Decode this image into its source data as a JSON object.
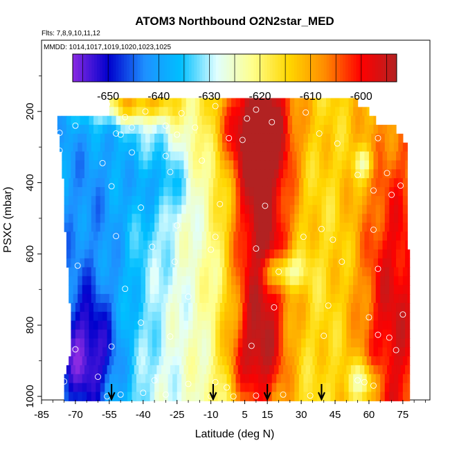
{
  "chart_data": {
    "type": "heatmap",
    "title": "ATOM3 Northbound O2N2star_MED",
    "subtitle": "Flts: 7,8,9,10,11,12",
    "annotation": "MMDD: 1014,1017,1019,1020,1023,1025",
    "xlabel": "Latitude (deg N)",
    "ylabel": "PSXC (mbar)",
    "xlim": [
      -85,
      87
    ],
    "ylim": [
      1010,
      0
    ],
    "x_ticks": [
      -85,
      -70,
      -55,
      -40,
      -25,
      -10,
      5,
      15,
      30,
      45,
      60,
      75
    ],
    "x_tick_labels": [
      "-85",
      "-70",
      "-55",
      "-40",
      "-25",
      "-10",
      "5",
      "15",
      "30",
      "45",
      "60",
      "75"
    ],
    "y_ticks": [
      200,
      400,
      600,
      800,
      1000
    ],
    "y_tick_labels": [
      "200",
      "400",
      "600",
      "800",
      "1000"
    ],
    "colorbar": {
      "range": [
        -657,
        -593
      ],
      "ticks": [
        -650,
        -640,
        -630,
        -620,
        -610,
        -600
      ],
      "tick_labels": [
        "-650",
        "-640",
        "-630",
        "-620",
        "-610",
        "-600"
      ],
      "colors": [
        "#8a2be2",
        "#0000cd",
        "#1e90ff",
        "#00bfff",
        "#e0ffff",
        "#ffff8c",
        "#ffd700",
        "#ff8c00",
        "#ff0000",
        "#b22222"
      ]
    },
    "grid": false,
    "levels": [
      175,
      200,
      225,
      250,
      275,
      300,
      325,
      350,
      375,
      400,
      425,
      450,
      475,
      500,
      525,
      550,
      575,
      600,
      625,
      650,
      675,
      700,
      725,
      750,
      775,
      800,
      825,
      850,
      875,
      900,
      925,
      950,
      975,
      1000
    ],
    "level_extents": [
      [
        -55,
        55
      ],
      [
        -55,
        60
      ],
      [
        -78,
        63
      ],
      [
        -78,
        72
      ],
      [
        -77,
        75
      ],
      [
        -77,
        77
      ],
      [
        -76,
        77
      ],
      [
        -76,
        77
      ],
      [
        -76,
        77
      ],
      [
        -75,
        77
      ],
      [
        -75,
        77
      ],
      [
        -75,
        77
      ],
      [
        -75,
        77
      ],
      [
        -75,
        77
      ],
      [
        -75,
        77
      ],
      [
        -74,
        77
      ],
      [
        -74,
        77
      ],
      [
        -74,
        78
      ],
      [
        -74,
        78
      ],
      [
        -73,
        78
      ],
      [
        -73,
        78
      ],
      [
        -73,
        78
      ],
      [
        -73,
        78
      ],
      [
        -72,
        78
      ],
      [
        -72,
        78
      ],
      [
        -72,
        78
      ],
      [
        -72,
        78
      ],
      [
        -72,
        78
      ],
      [
        -72,
        78
      ],
      [
        -73,
        78
      ],
      [
        -74,
        78
      ],
      [
        -75,
        78
      ],
      [
        -75,
        78
      ],
      [
        -75,
        78
      ]
    ],
    "features": [
      {
        "lat": 12,
        "p": 500,
        "w_lat": 10,
        "w_p": 420,
        "amp": 28
      },
      {
        "lat": 8,
        "p": 240,
        "w_lat": 14,
        "w_p": 90,
        "amp": 14
      },
      {
        "lat": -45,
        "p": 175,
        "w_lat": 15,
        "w_p": 40,
        "amp": 22
      },
      {
        "lat": 8,
        "p": 900,
        "w_lat": 9,
        "w_p": 90,
        "amp": 10
      },
      {
        "lat": 70,
        "p": 780,
        "w_lat": 10,
        "w_p": 350,
        "amp": 14
      },
      {
        "lat": -65,
        "p": 900,
        "w_lat": 10,
        "w_p": 130,
        "amp": -18
      },
      {
        "lat": -60,
        "p": 500,
        "w_lat": 18,
        "w_p": 350,
        "amp": -10
      },
      {
        "lat": -32,
        "p": 400,
        "w_lat": 8,
        "w_p": 60,
        "amp": -8
      },
      {
        "lat": 22,
        "p": 650,
        "w_lat": 6,
        "w_p": 35,
        "amp": -18
      },
      {
        "lat": 58,
        "p": 960,
        "w_lat": 5,
        "w_p": 40,
        "amp": -14
      },
      {
        "lat": 58,
        "p": 345,
        "w_lat": 3,
        "w_p": 30,
        "amp": -12
      }
    ],
    "flight_points": [
      [
        -56,
        180
      ],
      [
        -39,
        200
      ],
      [
        -8,
        185
      ],
      [
        10,
        195
      ],
      [
        32,
        203
      ],
      [
        -23,
        205
      ],
      [
        6,
        220
      ],
      [
        -48,
        216
      ],
      [
        -70,
        240
      ],
      [
        -45,
        245
      ],
      [
        -30,
        240
      ],
      [
        -17,
        245
      ],
      [
        -77,
        260
      ],
      [
        -52,
        262
      ],
      [
        -50,
        265
      ],
      [
        -25,
        265
      ],
      [
        17,
        230
      ],
      [
        -2,
        275
      ],
      [
        4,
        280
      ],
      [
        38,
        262
      ],
      [
        64,
        275
      ],
      [
        -77,
        310
      ],
      [
        -45,
        315
      ],
      [
        -30,
        325
      ],
      [
        46,
        290
      ],
      [
        -14,
        338
      ],
      [
        -58,
        345
      ],
      [
        -28,
        370
      ],
      [
        55,
        378
      ],
      [
        68,
        373
      ],
      [
        -54,
        410
      ],
      [
        62,
        422
      ],
      [
        74,
        408
      ],
      [
        70,
        434
      ],
      [
        -6,
        460
      ],
      [
        14,
        465
      ],
      [
        -41,
        470
      ],
      [
        -25,
        520
      ],
      [
        39,
        530
      ],
      [
        62,
        532
      ],
      [
        -52,
        550
      ],
      [
        -8,
        552
      ],
      [
        31,
        552
      ],
      [
        -10,
        588
      ],
      [
        -36,
        580
      ],
      [
        10,
        585
      ],
      [
        44,
        560
      ],
      [
        -69,
        633
      ],
      [
        -26,
        622
      ],
      [
        20,
        650
      ],
      [
        48,
        622
      ],
      [
        64,
        642
      ],
      [
        -48,
        698
      ],
      [
        -20,
        720
      ],
      [
        18,
        750
      ],
      [
        42,
        745
      ],
      [
        60,
        778
      ],
      [
        75,
        770
      ],
      [
        -41,
        793
      ],
      [
        -28,
        832
      ],
      [
        -54,
        860
      ],
      [
        -70,
        868
      ],
      [
        8,
        858
      ],
      [
        40,
        830
      ],
      [
        64,
        827
      ],
      [
        69,
        835
      ],
      [
        72,
        870
      ],
      [
        -75,
        958
      ],
      [
        -60,
        945
      ],
      [
        -35,
        955
      ],
      [
        -20,
        965
      ],
      [
        -8,
        960
      ],
      [
        -3,
        975
      ],
      [
        -40,
        990
      ],
      [
        -50,
        995
      ],
      [
        -30,
        995
      ],
      [
        0,
        1000
      ],
      [
        10,
        998
      ],
      [
        22,
        995
      ],
      [
        34,
        998
      ],
      [
        55,
        955
      ],
      [
        58,
        960
      ],
      [
        62,
        970
      ],
      [
        -56,
        1000
      ],
      [
        -10,
        1000
      ]
    ],
    "arrows": [
      -54,
      -9,
      15,
      39
    ]
  }
}
